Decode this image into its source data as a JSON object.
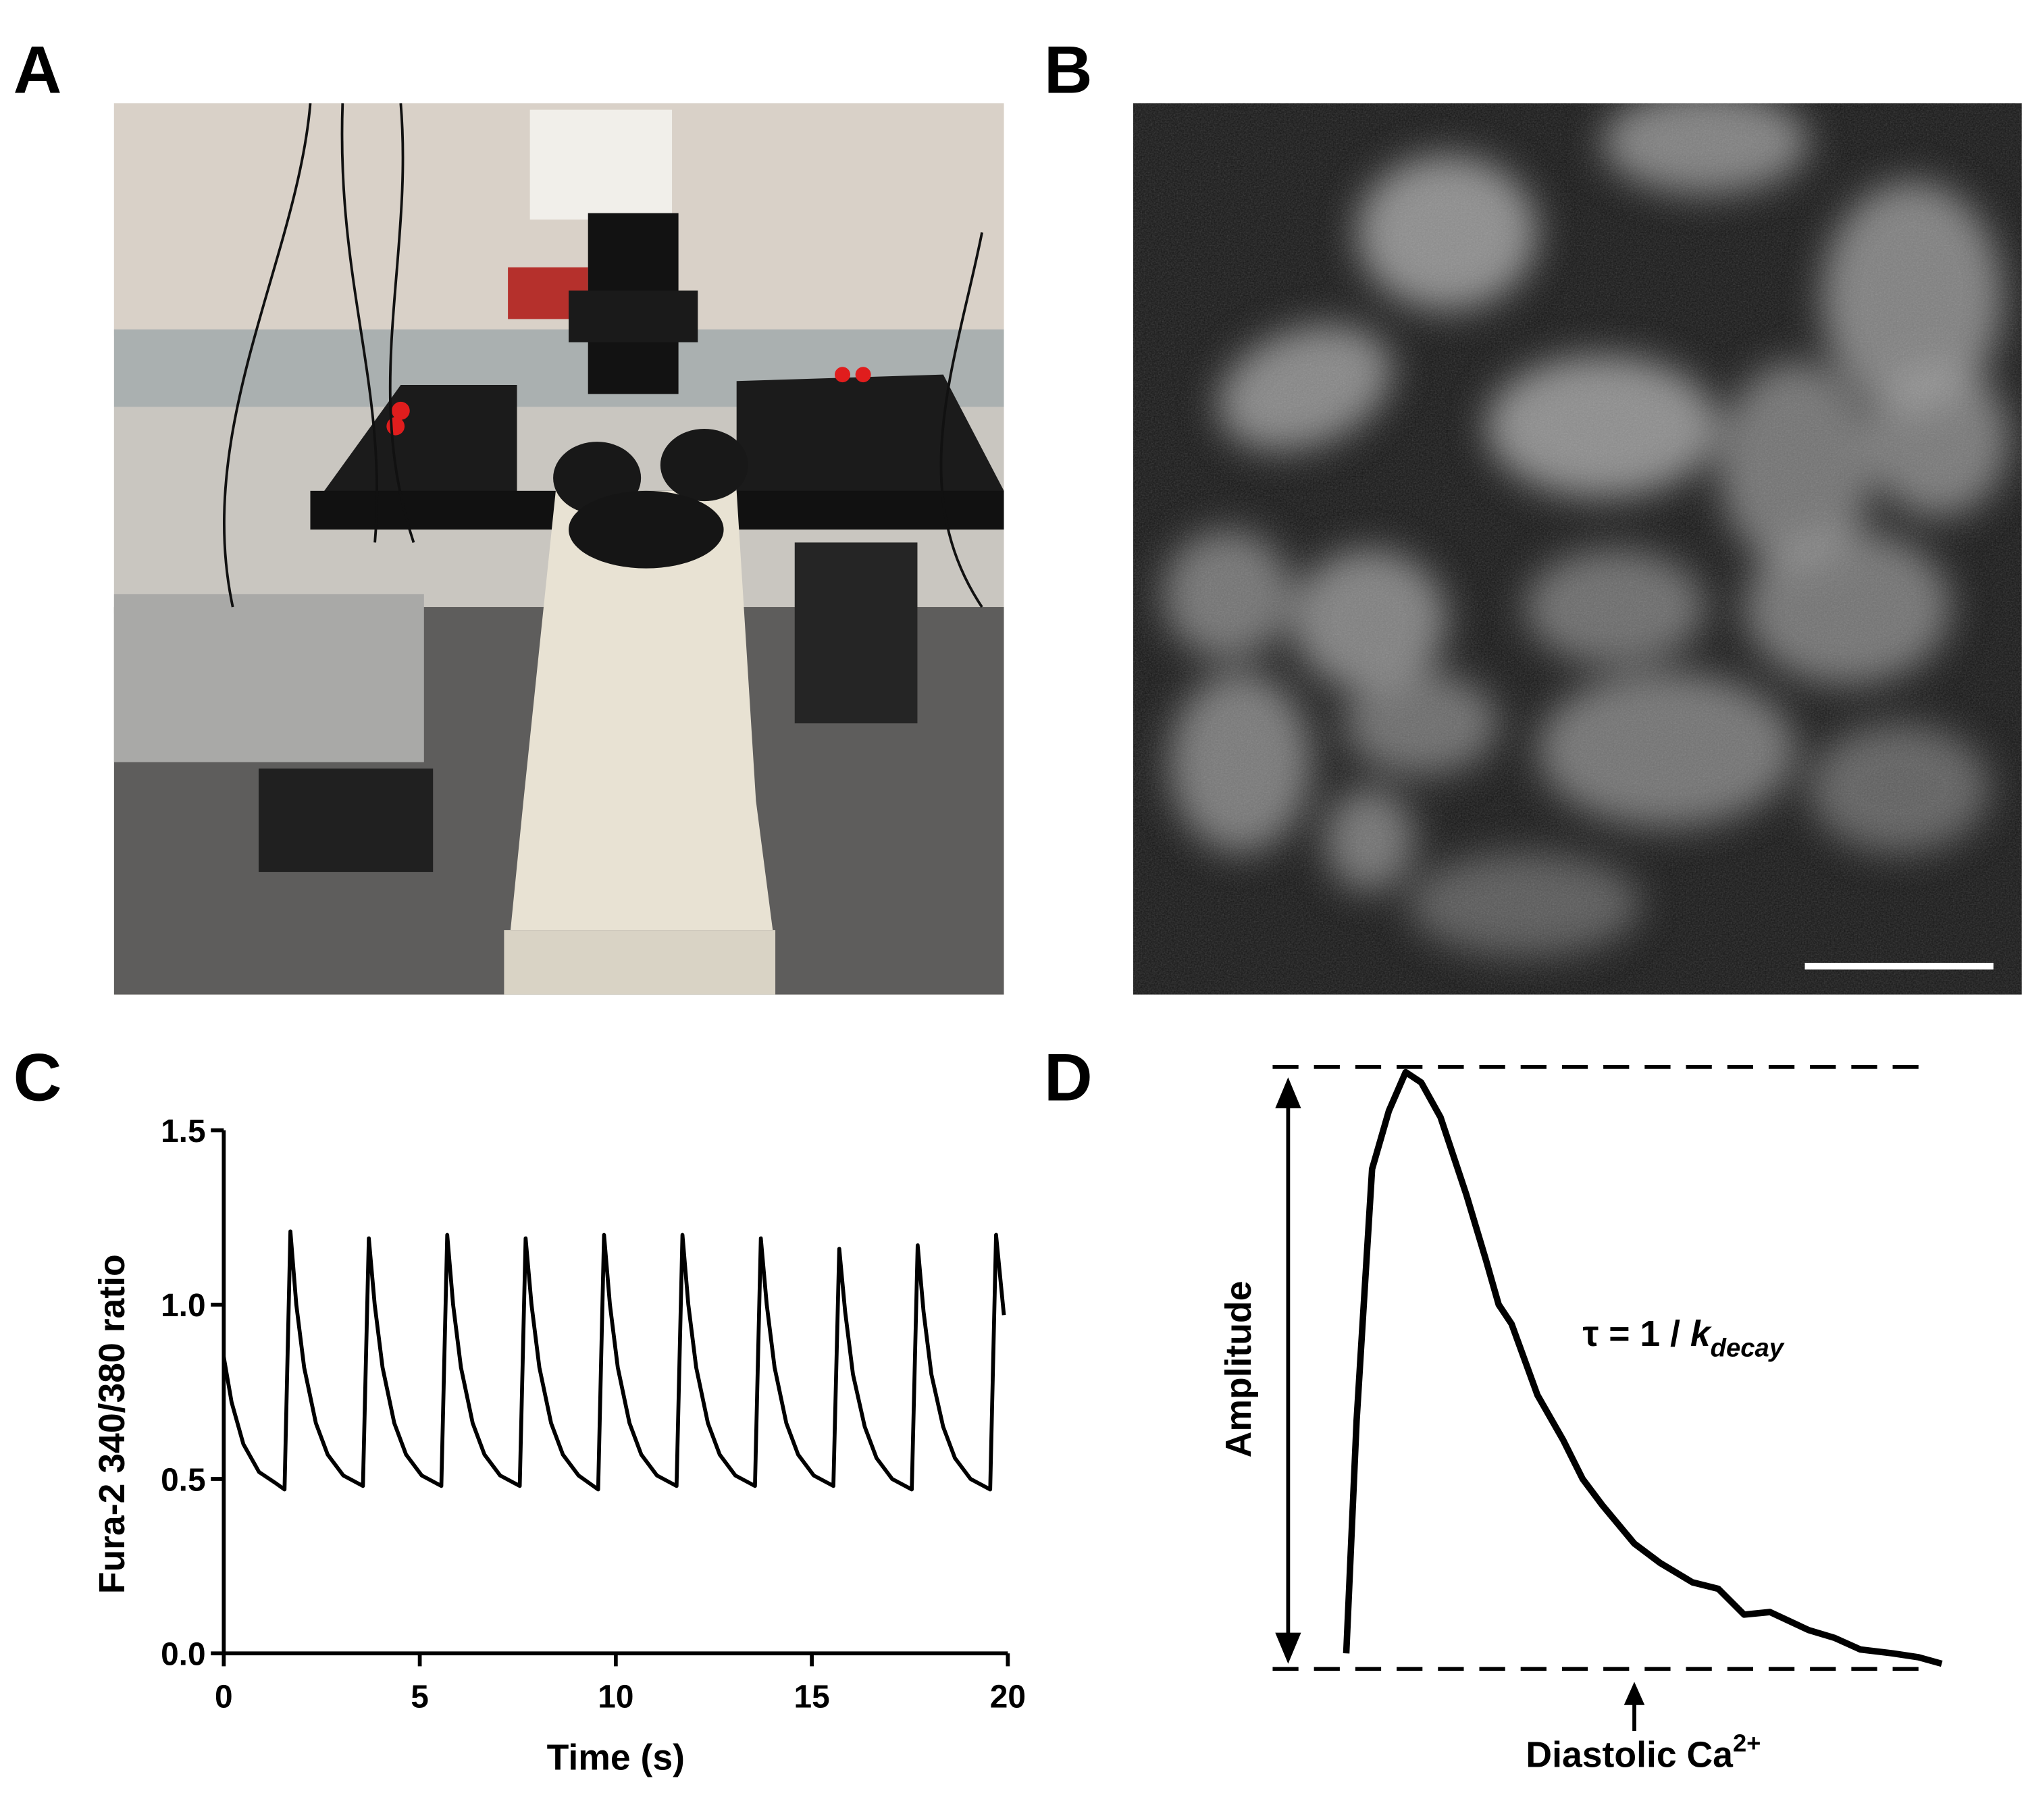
{
  "panels": {
    "a": "A",
    "b": "B",
    "c": "C",
    "d": "D"
  },
  "chart_data": {
    "type": "line",
    "xlabel": "Time (s)",
    "ylabel": "Fura-2 340/380 ratio",
    "xlim": [
      0,
      20
    ],
    "xticks": [
      0,
      5,
      10,
      15,
      20
    ],
    "ylim": [
      0,
      1.5
    ],
    "yticks": [
      {
        "value": 0,
        "label": "0.0"
      },
      0.5,
      {
        "value": 1,
        "label": "1.0"
      },
      1.5
    ],
    "series": [
      {
        "color": "#000000",
        "x": [
          0,
          0.2,
          0.5,
          0.9,
          1.3,
          1.55,
          1.7,
          1.85,
          2.05,
          2.35,
          2.65,
          3.05,
          3.55,
          3.7,
          3.85,
          4.05,
          4.35,
          4.65,
          5.05,
          5.55,
          5.7,
          5.85,
          6.05,
          6.35,
          6.65,
          7.05,
          7.55,
          7.7,
          7.85,
          8.05,
          8.35,
          8.65,
          9.05,
          9.55,
          9.7,
          9.85,
          10.05,
          10.35,
          10.65,
          11.05,
          11.55,
          11.7,
          11.85,
          12.05,
          12.35,
          12.65,
          13.05,
          13.55,
          13.7,
          13.85,
          14.05,
          14.35,
          14.65,
          15.05,
          15.55,
          15.7,
          15.85,
          16.05,
          16.35,
          16.65,
          17.05,
          17.55,
          17.7,
          17.85,
          18.05,
          18.35,
          18.65,
          19.05,
          19.55,
          19.7,
          19.9
        ],
        "values": [
          0.85,
          0.72,
          0.6,
          0.52,
          0.49,
          0.47,
          1.21,
          1.0,
          0.82,
          0.66,
          0.57,
          0.51,
          0.48,
          1.19,
          1.0,
          0.82,
          0.66,
          0.57,
          0.51,
          0.48,
          1.2,
          1.0,
          0.82,
          0.66,
          0.57,
          0.51,
          0.48,
          1.19,
          1.0,
          0.82,
          0.66,
          0.57,
          0.51,
          0.47,
          1.2,
          1.0,
          0.82,
          0.66,
          0.57,
          0.51,
          0.48,
          1.2,
          1.0,
          0.82,
          0.66,
          0.57,
          0.51,
          0.48,
          1.19,
          1.0,
          0.82,
          0.66,
          0.57,
          0.51,
          0.48,
          1.16,
          0.98,
          0.8,
          0.65,
          0.56,
          0.5,
          0.47,
          1.17,
          0.98,
          0.8,
          0.65,
          0.56,
          0.5,
          0.47,
          1.2,
          0.97
        ]
      }
    ]
  },
  "panel_d": {
    "amplitude": "Amplitude",
    "tau": "τ = 1 / ",
    "k": "k",
    "k_sub": "decay",
    "diastolic": "Diastolic Ca",
    "diastolic_sup": "2+"
  }
}
